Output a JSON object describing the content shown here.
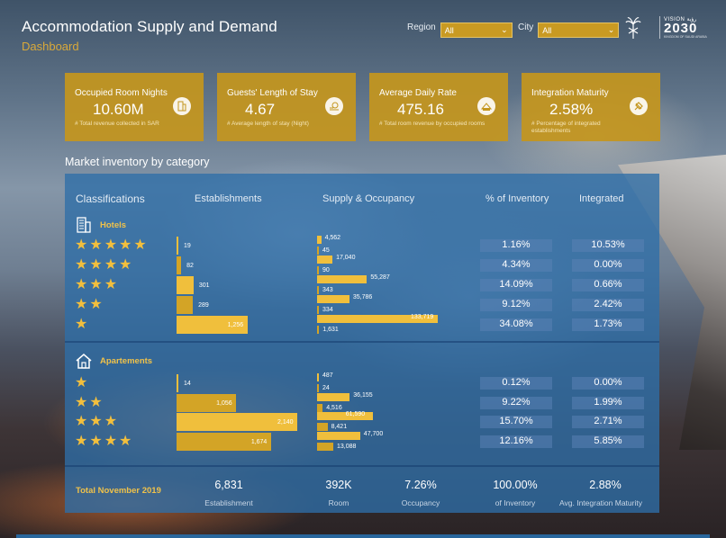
{
  "header": {
    "title": "Accommodation Supply and Demand",
    "subtitle": "Dashboard"
  },
  "filters": {
    "region": {
      "label": "Region",
      "value": "All"
    },
    "city": {
      "label": "City",
      "value": "All"
    }
  },
  "logo": {
    "text_line1": "VISION رؤية",
    "text_line2": "2030",
    "text_line3": "KINGDOM OF SAUDI ARABIA"
  },
  "kpis": [
    {
      "label": "Occupied Room Nights",
      "value": "10.60M",
      "sub": "# Total revenue collected in SAR",
      "icon": "building-icon"
    },
    {
      "label": "Guests' Length of Stay",
      "value": "4.67",
      "sub": "# Average length  of stay (Night)",
      "icon": "bed-icon"
    },
    {
      "label": "Average Daily Rate",
      "value": "475.16",
      "sub": "# Total room revenue by occupied rooms",
      "icon": "money-icon"
    },
    {
      "label": "Integration Maturity",
      "value": "2.58%",
      "sub": "# Percentage of integrated establishments",
      "icon": "plug-icon"
    }
  ],
  "section_title": "Market inventory by category",
  "table": {
    "columns": [
      "Classifications",
      "Establishments",
      "Supply & Occupancy",
      "% of Inventory",
      "Integrated"
    ],
    "categories": [
      {
        "label": "Hotels",
        "icon": "hotel-icon",
        "rows": [
          {
            "stars": 5,
            "establishments": 19,
            "supply": 4562,
            "occupancy": 45,
            "pct_inventory": "1.16%",
            "integrated": "10.53%"
          },
          {
            "stars": 4,
            "establishments": 82,
            "supply": 17040,
            "occupancy": 90,
            "pct_inventory": "4.34%",
            "integrated": "0.00%"
          },
          {
            "stars": 3,
            "establishments": 301,
            "supply": 55287,
            "occupancy": 343,
            "pct_inventory": "14.09%",
            "integrated": "0.66%"
          },
          {
            "stars": 2,
            "establishments": 289,
            "supply": 35786,
            "occupancy": 334,
            "pct_inventory": "9.12%",
            "integrated": "2.42%"
          },
          {
            "stars": 1,
            "establishments": 1256,
            "supply": 133719,
            "occupancy": 1631,
            "pct_inventory": "34.08%",
            "integrated": "1.73%"
          }
        ]
      },
      {
        "label": "Apartements",
        "icon": "house-icon",
        "rows": [
          {
            "stars": 1,
            "establishments": 14,
            "supply": 487,
            "occupancy": 24,
            "pct_inventory": "0.12%",
            "integrated": "0.00%"
          },
          {
            "stars": 2,
            "establishments": 1056,
            "supply": 36155,
            "occupancy": 4516,
            "pct_inventory": "9.22%",
            "integrated": "1.99%"
          },
          {
            "stars": 3,
            "establishments": 2140,
            "supply": 61590,
            "occupancy": 8421,
            "pct_inventory": "15.70%",
            "integrated": "2.71%"
          },
          {
            "stars": 4,
            "establishments": 1674,
            "supply": 47700,
            "occupancy": 13088,
            "pct_inventory": "12.16%",
            "integrated": "5.85%"
          }
        ]
      }
    ],
    "totals": {
      "label": "Total November 2019",
      "items": [
        {
          "value": "6,831",
          "label": "Establishment"
        },
        {
          "value": "392K",
          "label": "Room"
        },
        {
          "value": "7.26%",
          "label": "Occupancy"
        },
        {
          "value": "100.00%",
          "label": "of Inventory"
        },
        {
          "value": "2.88%",
          "label": "Avg. Integration Maturity"
        }
      ]
    }
  },
  "colors": {
    "gold": "#c4961e",
    "bar_gold": "#f0bf3c",
    "bar_dark": "#d3a426",
    "panel_blue": "#2e6ea8",
    "label_gold": "#f0c24a"
  }
}
